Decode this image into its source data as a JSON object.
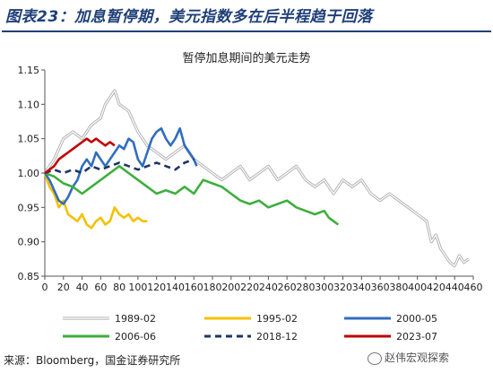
{
  "figure": {
    "title": "图表23：加息暂停期，美元指数多在后半程趋于回落",
    "source": "来源：Bloomberg，国金证券研究所",
    "watermark": "赵伟宏观探索",
    "watermark_icon": "wechat-icon"
  },
  "chart_data": {
    "type": "line",
    "title": "暂停加息期间的美元走势",
    "xlabel": "",
    "ylabel": "",
    "xlim": [
      0,
      460
    ],
    "ylim": [
      0.85,
      1.15
    ],
    "x_ticks": [
      0,
      20,
      40,
      60,
      80,
      100,
      120,
      140,
      160,
      180,
      200,
      220,
      240,
      260,
      280,
      300,
      320,
      340,
      360,
      380,
      400,
      420,
      440,
      460
    ],
    "y_ticks": [
      0.85,
      0.9,
      0.95,
      1.0,
      1.05,
      1.1,
      1.15
    ],
    "grid": false,
    "legend_position": "bottom",
    "series": [
      {
        "name": "1989-02",
        "color": "#b4b4b4",
        "style": "double",
        "points": [
          [
            0,
            1.0
          ],
          [
            10,
            1.02
          ],
          [
            20,
            1.05
          ],
          [
            30,
            1.06
          ],
          [
            40,
            1.05
          ],
          [
            50,
            1.07
          ],
          [
            60,
            1.08
          ],
          [
            65,
            1.1
          ],
          [
            70,
            1.11
          ],
          [
            75,
            1.12
          ],
          [
            80,
            1.1
          ],
          [
            90,
            1.09
          ],
          [
            100,
            1.06
          ],
          [
            110,
            1.04
          ],
          [
            120,
            1.03
          ],
          [
            130,
            1.02
          ],
          [
            140,
            1.03
          ],
          [
            150,
            1.04
          ],
          [
            160,
            1.02
          ],
          [
            170,
            1.01
          ],
          [
            180,
            1.0
          ],
          [
            190,
            0.99
          ],
          [
            200,
            1.0
          ],
          [
            210,
            1.01
          ],
          [
            220,
            0.99
          ],
          [
            230,
            1.0
          ],
          [
            240,
            1.01
          ],
          [
            250,
            0.99
          ],
          [
            260,
            1.0
          ],
          [
            270,
            1.01
          ],
          [
            280,
            0.99
          ],
          [
            290,
            0.98
          ],
          [
            300,
            0.99
          ],
          [
            310,
            0.97
          ],
          [
            320,
            0.99
          ],
          [
            330,
            0.98
          ],
          [
            340,
            0.99
          ],
          [
            350,
            0.97
          ],
          [
            360,
            0.96
          ],
          [
            370,
            0.97
          ],
          [
            380,
            0.96
          ],
          [
            390,
            0.95
          ],
          [
            400,
            0.94
          ],
          [
            410,
            0.93
          ],
          [
            415,
            0.9
          ],
          [
            420,
            0.91
          ],
          [
            425,
            0.89
          ],
          [
            430,
            0.88
          ],
          [
            435,
            0.87
          ],
          [
            440,
            0.865
          ],
          [
            445,
            0.88
          ],
          [
            450,
            0.87
          ],
          [
            455,
            0.875
          ]
        ]
      },
      {
        "name": "1995-02",
        "color": "#f6c000",
        "style": "solid",
        "points": [
          [
            0,
            1.0
          ],
          [
            5,
            0.98
          ],
          [
            10,
            0.97
          ],
          [
            15,
            0.95
          ],
          [
            20,
            0.96
          ],
          [
            25,
            0.94
          ],
          [
            30,
            0.935
          ],
          [
            35,
            0.93
          ],
          [
            40,
            0.94
          ],
          [
            45,
            0.925
          ],
          [
            50,
            0.92
          ],
          [
            55,
            0.93
          ],
          [
            60,
            0.935
          ],
          [
            65,
            0.925
          ],
          [
            70,
            0.93
          ],
          [
            75,
            0.95
          ],
          [
            80,
            0.94
          ],
          [
            85,
            0.935
          ],
          [
            90,
            0.94
          ],
          [
            95,
            0.93
          ],
          [
            100,
            0.935
          ],
          [
            105,
            0.93
          ],
          [
            110,
            0.93
          ]
        ]
      },
      {
        "name": "2000-05",
        "color": "#2f6ebf",
        "style": "solid",
        "points": [
          [
            0,
            1.0
          ],
          [
            5,
            0.99
          ],
          [
            10,
            0.975
          ],
          [
            15,
            0.96
          ],
          [
            20,
            0.955
          ],
          [
            25,
            0.965
          ],
          [
            30,
            0.98
          ],
          [
            35,
            0.99
          ],
          [
            40,
            1.01
          ],
          [
            45,
            1.02
          ],
          [
            50,
            1.01
          ],
          [
            55,
            1.03
          ],
          [
            60,
            1.02
          ],
          [
            65,
            1.01
          ],
          [
            70,
            1.02
          ],
          [
            75,
            1.03
          ],
          [
            80,
            1.04
          ],
          [
            85,
            1.035
          ],
          [
            90,
            1.05
          ],
          [
            95,
            1.045
          ],
          [
            100,
            1.02
          ],
          [
            105,
            1.01
          ],
          [
            110,
            1.03
          ],
          [
            115,
            1.05
          ],
          [
            120,
            1.06
          ],
          [
            125,
            1.065
          ],
          [
            130,
            1.05
          ],
          [
            135,
            1.04
          ],
          [
            140,
            1.05
          ],
          [
            145,
            1.065
          ],
          [
            150,
            1.04
          ],
          [
            155,
            1.03
          ],
          [
            160,
            1.02
          ],
          [
            163,
            1.01
          ]
        ]
      },
      {
        "name": "2006-06",
        "color": "#3eae3e",
        "style": "solid",
        "points": [
          [
            0,
            1.0
          ],
          [
            10,
            0.995
          ],
          [
            20,
            0.985
          ],
          [
            30,
            0.98
          ],
          [
            40,
            0.97
          ],
          [
            50,
            0.98
          ],
          [
            60,
            0.99
          ],
          [
            70,
            1.0
          ],
          [
            80,
            1.01
          ],
          [
            90,
            1.0
          ],
          [
            100,
            0.99
          ],
          [
            110,
            0.98
          ],
          [
            120,
            0.97
          ],
          [
            130,
            0.975
          ],
          [
            140,
            0.97
          ],
          [
            150,
            0.98
          ],
          [
            160,
            0.97
          ],
          [
            170,
            0.99
          ],
          [
            180,
            0.985
          ],
          [
            190,
            0.98
          ],
          [
            200,
            0.97
          ],
          [
            210,
            0.96
          ],
          [
            220,
            0.955
          ],
          [
            230,
            0.96
          ],
          [
            240,
            0.95
          ],
          [
            250,
            0.955
          ],
          [
            260,
            0.96
          ],
          [
            270,
            0.95
          ],
          [
            280,
            0.945
          ],
          [
            290,
            0.94
          ],
          [
            300,
            0.945
          ],
          [
            305,
            0.935
          ],
          [
            310,
            0.93
          ],
          [
            315,
            0.925
          ]
        ]
      },
      {
        "name": "2018-12",
        "color": "#1c3566",
        "style": "dashed",
        "points": [
          [
            0,
            1.0
          ],
          [
            10,
            1.005
          ],
          [
            20,
            1.0
          ],
          [
            30,
            1.005
          ],
          [
            40,
            1.0
          ],
          [
            50,
            1.01
          ],
          [
            60,
            1.005
          ],
          [
            70,
            1.01
          ],
          [
            80,
            1.015
          ],
          [
            90,
            1.01
          ],
          [
            100,
            1.005
          ],
          [
            110,
            1.01
          ],
          [
            120,
            1.015
          ],
          [
            130,
            1.01
          ],
          [
            140,
            1.005
          ],
          [
            150,
            1.015
          ],
          [
            160,
            1.02
          ]
        ]
      },
      {
        "name": "2023-07",
        "color": "#c00000",
        "style": "solid",
        "points": [
          [
            0,
            1.0
          ],
          [
            5,
            1.005
          ],
          [
            10,
            1.01
          ],
          [
            15,
            1.02
          ],
          [
            20,
            1.025
          ],
          [
            25,
            1.03
          ],
          [
            30,
            1.035
          ],
          [
            35,
            1.04
          ],
          [
            40,
            1.045
          ],
          [
            45,
            1.05
          ],
          [
            50,
            1.045
          ],
          [
            55,
            1.05
          ],
          [
            60,
            1.045
          ],
          [
            65,
            1.04
          ],
          [
            70,
            1.045
          ],
          [
            75,
            1.04
          ]
        ]
      }
    ]
  }
}
